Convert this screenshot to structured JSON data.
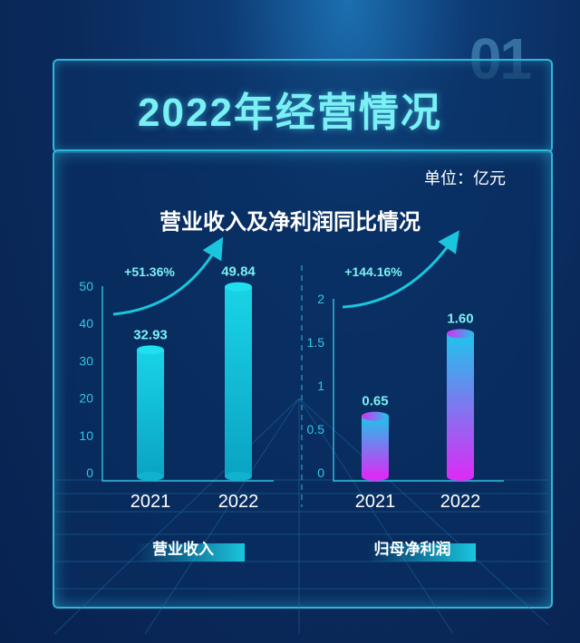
{
  "header": {
    "number": "01",
    "title": "2022年经营情况"
  },
  "unit": "单位：亿元",
  "subtitle": "营业收入及净利润同比情况",
  "chart_data": [
    {
      "type": "bar",
      "title": "营业收入",
      "categories": [
        "2021",
        "2022"
      ],
      "values": [
        32.93,
        49.84
      ],
      "value_labels": [
        "32.93",
        "49.84"
      ],
      "ylim": [
        0,
        50
      ],
      "yticks": [
        "0",
        "10",
        "20",
        "30",
        "40",
        "50"
      ],
      "growth": "+51.36%",
      "colors": {
        "top": "#19d3e6",
        "bottom": "#0aa3c4"
      }
    },
    {
      "type": "bar",
      "title": "归母净利润",
      "categories": [
        "2021",
        "2022"
      ],
      "values": [
        0.65,
        1.6
      ],
      "value_labels": [
        "0.65",
        "1.60"
      ],
      "ylim": [
        0,
        2
      ],
      "yticks": [
        "0",
        "0.5",
        "1",
        "1.5",
        "2"
      ],
      "growth": "+144.16%",
      "colors": {
        "top": "#1fc4ea",
        "bottom": "#d92ef5"
      }
    }
  ]
}
